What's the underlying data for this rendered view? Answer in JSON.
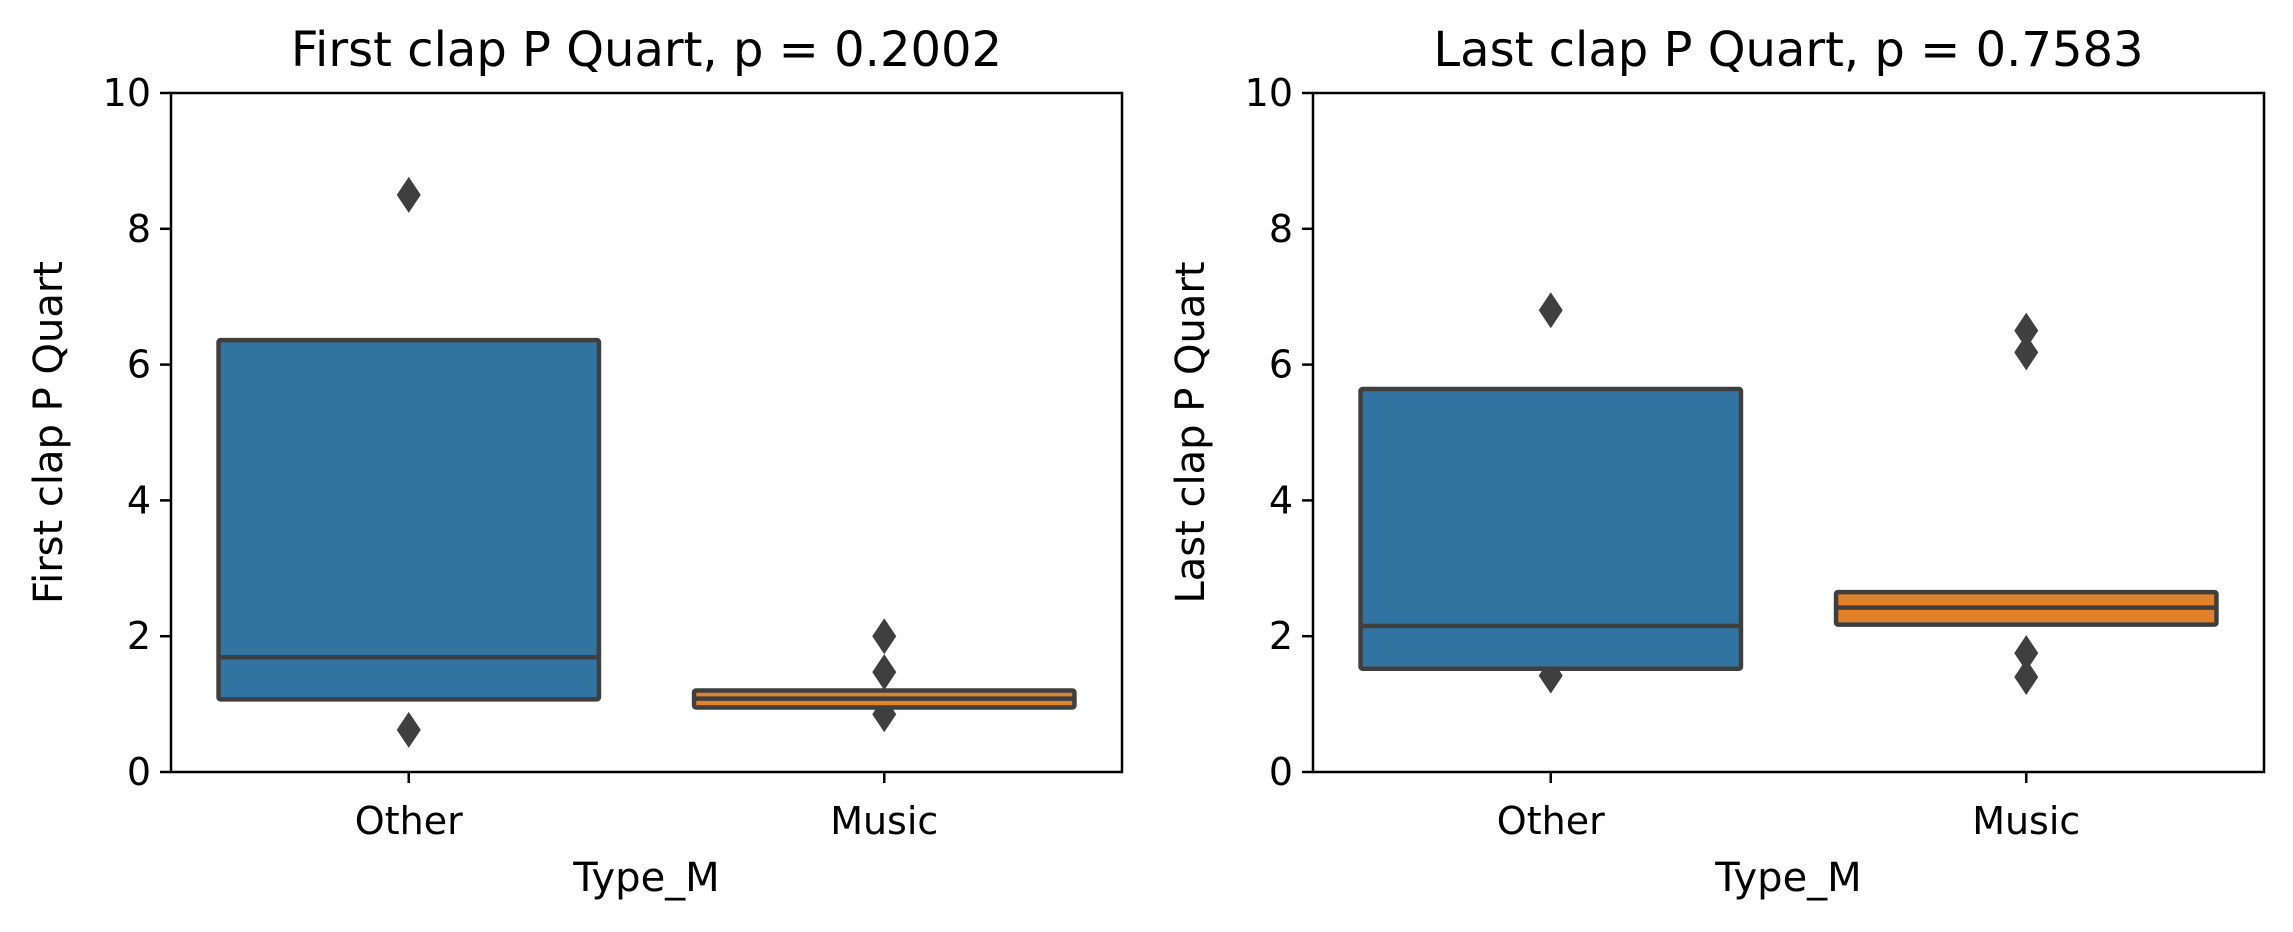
{
  "chart_data": [
    {
      "type": "boxplot",
      "title": "First clap P Quart, p = 0.2002",
      "xlabel": "Type_M",
      "ylabel": "First clap P Quart",
      "ylim": [
        0,
        10
      ],
      "yticks": [
        "0",
        "2",
        "4",
        "6",
        "8",
        "10"
      ],
      "categories": [
        "Other",
        "Music"
      ],
      "grid": false,
      "boxes": [
        {
          "category": "Other",
          "color": "#3274a1",
          "q1": 1.07,
          "median": 1.69,
          "q3": 6.36,
          "whisker_low": 1.07,
          "whisker_high": 6.36,
          "outliers": [
            8.5,
            0.62
          ]
        },
        {
          "category": "Music",
          "color": "#e1812c",
          "q1": 0.95,
          "median": 1.08,
          "q3": 1.2,
          "whisker_low": 0.95,
          "whisker_high": 1.2,
          "outliers": [
            2.0,
            1.47,
            0.85
          ]
        }
      ]
    },
    {
      "type": "boxplot",
      "title": "Last clap P Quart, p = 0.7583",
      "xlabel": "Type_M",
      "ylabel": "Last clap P Quart",
      "ylim": [
        0,
        10
      ],
      "yticks": [
        "0",
        "2",
        "4",
        "6",
        "8",
        "10"
      ],
      "categories": [
        "Other",
        "Music"
      ],
      "grid": false,
      "boxes": [
        {
          "category": "Other",
          "color": "#3274a1",
          "q1": 1.52,
          "median": 2.15,
          "q3": 5.64,
          "whisker_low": 1.52,
          "whisker_high": 5.64,
          "outliers": [
            6.8,
            1.42
          ]
        },
        {
          "category": "Music",
          "color": "#e1812c",
          "q1": 2.17,
          "median": 2.42,
          "q3": 2.65,
          "whisker_low": 2.17,
          "whisker_high": 2.65,
          "outliers": [
            6.5,
            6.18,
            1.75,
            1.4
          ]
        }
      ]
    }
  ]
}
